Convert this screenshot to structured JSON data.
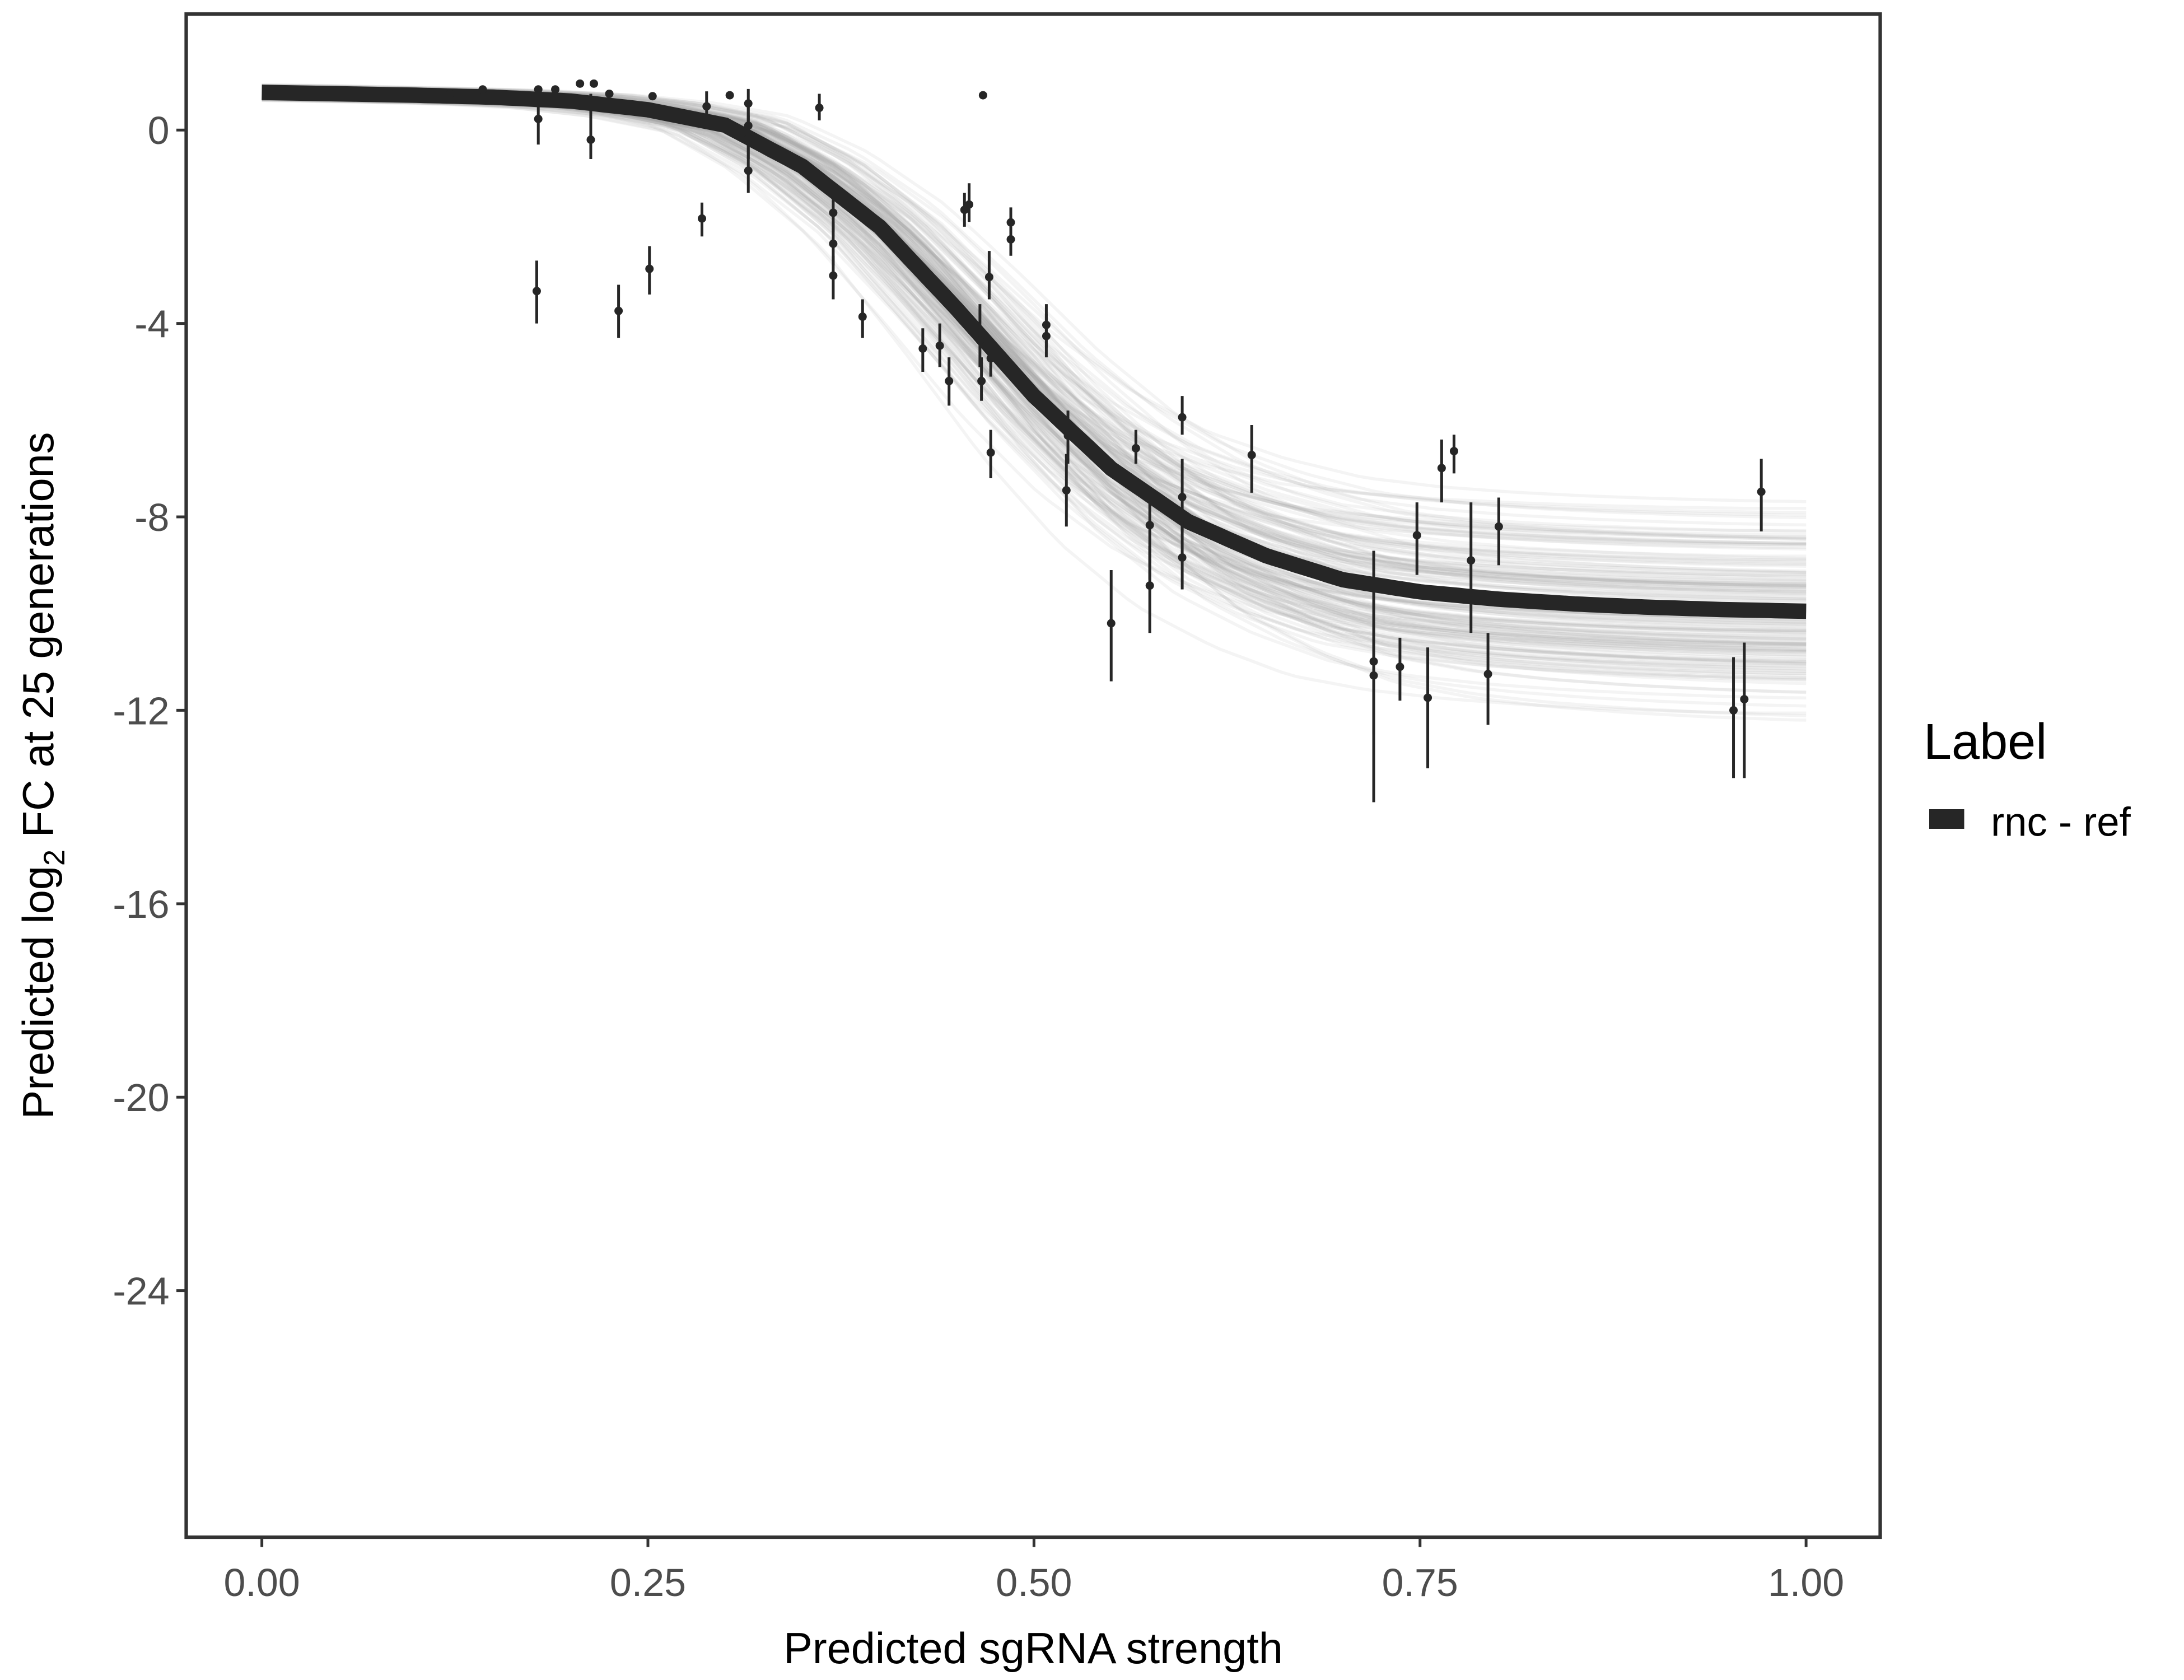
{
  "chart_data": {
    "type": "scatter",
    "xlabel": "Predicted sgRNA strength",
    "ylabel": {
      "prefix": "Predicted  log",
      "sub": "2",
      "suffix": " FC at 25 generations"
    },
    "xlim": [
      -0.049,
      1.048
    ],
    "ylim": [
      -29.1,
      2.4
    ],
    "x_ticks": [
      0,
      0.25,
      0.5,
      0.75,
      1
    ],
    "x_tick_labels": [
      "0.00",
      "0.25",
      "0.50",
      "0.75",
      "1.00"
    ],
    "y_ticks": [
      0,
      -4,
      -8,
      -12,
      -16,
      -20,
      -24
    ],
    "y_tick_labels": [
      "0",
      "-4",
      "-8",
      "-12",
      "-16",
      "-20",
      "-24"
    ],
    "grid": false,
    "legend": {
      "title": "Label",
      "position": "right",
      "entries": [
        {
          "label": "rnc - ref",
          "color": "#262626"
        }
      ]
    },
    "colors": {
      "fit": "#262626",
      "draws": "#a8a8a8",
      "points": "#262626"
    },
    "fit_curve": {
      "name": "rnc - ref",
      "x": [
        0,
        0.05,
        0.1,
        0.15,
        0.2,
        0.25,
        0.3,
        0.35,
        0.4,
        0.45,
        0.5,
        0.55,
        0.6,
        0.65,
        0.7,
        0.75,
        0.8,
        0.85,
        0.9,
        0.95,
        1.0
      ],
      "y": [
        0.78,
        0.75,
        0.72,
        0.68,
        0.6,
        0.42,
        0.1,
        -0.75,
        -2.0,
        -3.7,
        -5.5,
        -7.0,
        -8.1,
        -8.8,
        -9.3,
        -9.55,
        -9.7,
        -9.8,
        -9.87,
        -9.92,
        -9.95
      ]
    },
    "points": [
      {
        "x": 0.122,
        "y": 0.75
      },
      {
        "x": 0.143,
        "y": 0.84
      },
      {
        "x": 0.179,
        "y": 0.84
      },
      {
        "x": 0.179,
        "y": 0.23,
        "lo": -0.3,
        "hi": 0.75
      },
      {
        "x": 0.178,
        "y": -3.33,
        "lo": -4.0,
        "hi": -2.7
      },
      {
        "x": 0.19,
        "y": 0.84
      },
      {
        "x": 0.206,
        "y": 0.96
      },
      {
        "x": 0.215,
        "y": 0.96
      },
      {
        "x": 0.213,
        "y": -0.2,
        "lo": -0.6,
        "hi": 0.75
      },
      {
        "x": 0.225,
        "y": 0.75
      },
      {
        "x": 0.231,
        "y": -3.74,
        "lo": -4.3,
        "hi": -3.2
      },
      {
        "x": 0.251,
        "y": -2.87,
        "lo": -3.4,
        "hi": -2.4
      },
      {
        "x": 0.253,
        "y": 0.7
      },
      {
        "x": 0.285,
        "y": -1.83,
        "lo": -2.2,
        "hi": -1.5
      },
      {
        "x": 0.288,
        "y": 0.49,
        "lo": 0.1,
        "hi": 0.8
      },
      {
        "x": 0.303,
        "y": 0.72
      },
      {
        "x": 0.315,
        "y": 0.55,
        "lo": 0.2,
        "hi": 0.85
      },
      {
        "x": 0.315,
        "y": 0.09,
        "lo": -0.4,
        "hi": 0.5
      },
      {
        "x": 0.315,
        "y": -0.17,
        "lo": -0.6,
        "hi": 0.3
      },
      {
        "x": 0.315,
        "y": -0.84,
        "lo": -1.3,
        "hi": -0.4
      },
      {
        "x": 0.361,
        "y": 0.46,
        "lo": 0.2,
        "hi": 0.75
      },
      {
        "x": 0.37,
        "y": -1.71,
        "lo": -2.1,
        "hi": -1.3
      },
      {
        "x": 0.37,
        "y": -2.35,
        "lo": -2.8,
        "hi": -1.9
      },
      {
        "x": 0.37,
        "y": -3.01,
        "lo": -3.5,
        "hi": -2.6
      },
      {
        "x": 0.389,
        "y": -3.86,
        "lo": -4.3,
        "hi": -3.5
      },
      {
        "x": 0.428,
        "y": -4.52,
        "lo": -5.0,
        "hi": -4.1
      },
      {
        "x": 0.439,
        "y": -4.46,
        "lo": -4.9,
        "hi": -4.0
      },
      {
        "x": 0.445,
        "y": -5.19,
        "lo": -5.7,
        "hi": -4.7
      },
      {
        "x": 0.455,
        "y": -1.65,
        "lo": -2.0,
        "hi": -1.3
      },
      {
        "x": 0.458,
        "y": -1.54,
        "lo": -1.9,
        "hi": -1.1
      },
      {
        "x": 0.465,
        "y": -4.35,
        "lo": -4.9,
        "hi": -3.6
      },
      {
        "x": 0.466,
        "y": -5.19,
        "lo": -5.6,
        "hi": -4.7
      },
      {
        "x": 0.467,
        "y": 0.72
      },
      {
        "x": 0.471,
        "y": -3.04,
        "lo": -3.5,
        "hi": -2.5
      },
      {
        "x": 0.472,
        "y": -4.72,
        "lo": -5.1,
        "hi": -4.3
      },
      {
        "x": 0.472,
        "y": -6.67,
        "lo": -7.2,
        "hi": -6.2
      },
      {
        "x": 0.485,
        "y": -1.91,
        "lo": -2.3,
        "hi": -1.6
      },
      {
        "x": 0.485,
        "y": -2.26,
        "lo": -2.6,
        "hi": -1.8
      },
      {
        "x": 0.508,
        "y": -4.03,
        "lo": -4.5,
        "hi": -3.6
      },
      {
        "x": 0.508,
        "y": -4.26,
        "lo": -4.7,
        "hi": -3.8
      },
      {
        "x": 0.522,
        "y": -6.32,
        "lo": -6.9,
        "hi": -5.8
      },
      {
        "x": 0.521,
        "y": -7.45,
        "lo": -8.2,
        "hi": -6.7
      },
      {
        "x": 0.55,
        "y": -10.2,
        "lo": -11.4,
        "hi": -9.1
      },
      {
        "x": 0.566,
        "y": -6.58,
        "lo": -6.9,
        "hi": -6.2
      },
      {
        "x": 0.575,
        "y": -8.17,
        "lo": -9.3,
        "hi": -7.4
      },
      {
        "x": 0.575,
        "y": -9.42,
        "lo": -10.4,
        "hi": -8.6
      },
      {
        "x": 0.596,
        "y": -5.94,
        "lo": -6.3,
        "hi": -5.5
      },
      {
        "x": 0.596,
        "y": -7.59,
        "lo": -8.3,
        "hi": -6.8
      },
      {
        "x": 0.596,
        "y": -8.84,
        "lo": -9.5,
        "hi": -8.1
      },
      {
        "x": 0.641,
        "y": -6.72,
        "lo": -7.5,
        "hi": -6.1
      },
      {
        "x": 0.72,
        "y": -10.99,
        "lo": -12.5,
        "hi": -8.7
      },
      {
        "x": 0.72,
        "y": -11.28,
        "lo": -13.9,
        "hi": -10.2
      },
      {
        "x": 0.737,
        "y": -11.1,
        "lo": -11.8,
        "hi": -10.5
      },
      {
        "x": 0.748,
        "y": -8.38,
        "lo": -9.2,
        "hi": -7.7
      },
      {
        "x": 0.755,
        "y": -11.74,
        "lo": -13.2,
        "hi": -10.7
      },
      {
        "x": 0.764,
        "y": -6.99,
        "lo": -7.7,
        "hi": -6.4
      },
      {
        "x": 0.772,
        "y": -6.64,
        "lo": -7.1,
        "hi": -6.3
      },
      {
        "x": 0.783,
        "y": -8.9,
        "lo": -10.4,
        "hi": -7.7
      },
      {
        "x": 0.794,
        "y": -11.25,
        "lo": -12.3,
        "hi": -10.4
      },
      {
        "x": 0.801,
        "y": -8.2,
        "lo": -9.0,
        "hi": -7.6
      },
      {
        "x": 0.953,
        "y": -12.0,
        "lo": -13.4,
        "hi": -10.9
      },
      {
        "x": 0.96,
        "y": -11.77,
        "lo": -13.4,
        "hi": -10.6
      },
      {
        "x": 0.971,
        "y": -7.48,
        "lo": -8.3,
        "hi": -6.8
      }
    ]
  }
}
